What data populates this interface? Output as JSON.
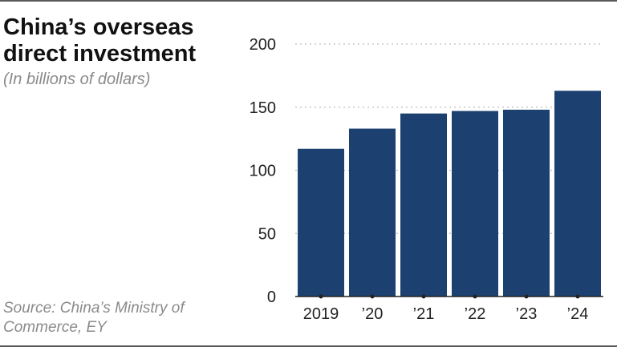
{
  "title": "China’s overseas direct investment",
  "subtitle": "(In billions of dollars)",
  "source": "Source: China’s Ministry of Commerce, EY",
  "colors": {
    "bar": "#1c4170",
    "grid": "#bdbdbd",
    "axis": "#222222",
    "rule": "#5a5a5a"
  },
  "chart_data": {
    "type": "bar",
    "categories": [
      "2019",
      "’20",
      "’21",
      "’22",
      "’23",
      "’24"
    ],
    "values": [
      117,
      133,
      145,
      147,
      148,
      163
    ],
    "ylim": [
      0,
      200
    ],
    "yticks": [
      0,
      50,
      100,
      150,
      200
    ],
    "grid": true
  }
}
